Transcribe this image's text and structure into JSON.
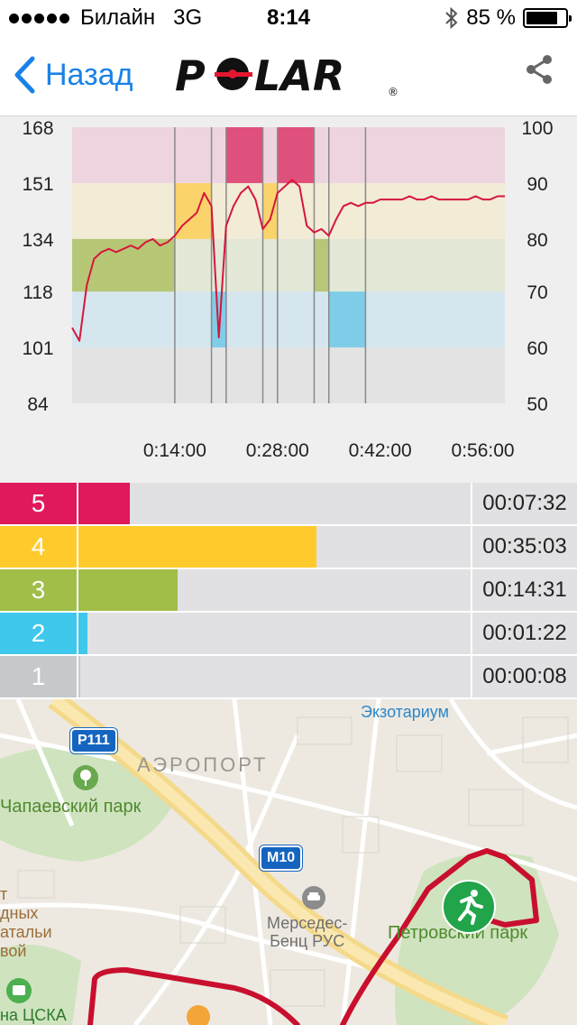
{
  "status_bar": {
    "carrier": "Билайн",
    "network": "3G",
    "time": "8:14",
    "battery_text": "85 %",
    "battery_level": 0.85
  },
  "nav": {
    "back_label": "Назад",
    "logo_text": "POLAR",
    "logo_mark": "®"
  },
  "chart_data": {
    "type": "line",
    "x": [
      0,
      1,
      2,
      3,
      4,
      5,
      6,
      7,
      8,
      9,
      10,
      11,
      12,
      13,
      14,
      15,
      16,
      17,
      18,
      19,
      20,
      21,
      22,
      23,
      24,
      25,
      26,
      27,
      28,
      29,
      30,
      31,
      32,
      33,
      34,
      35,
      36,
      37,
      38,
      39,
      40,
      41,
      42,
      43,
      44,
      45,
      46,
      47,
      48,
      49,
      50,
      51,
      52,
      53,
      54,
      55,
      56,
      57,
      58,
      59
    ],
    "y": [
      107,
      103,
      120,
      128,
      130,
      131,
      130,
      131,
      132,
      131,
      133,
      134,
      132,
      133,
      135,
      138,
      140,
      142,
      148,
      144,
      104,
      138,
      144,
      148,
      150,
      146,
      137,
      140,
      148,
      150,
      152,
      150,
      138,
      136,
      137,
      135,
      140,
      144,
      145,
      144,
      145,
      145,
      146,
      146,
      146,
      146,
      147,
      146,
      146,
      147,
      146,
      146,
      146,
      146,
      146,
      147,
      146,
      146,
      147,
      147
    ],
    "xlabel": "",
    "ylabel": "",
    "xlim": [
      0,
      59
    ],
    "ylim": [
      84,
      168
    ],
    "x_ticks": [
      "0:14:00",
      "0:28:00",
      "0:42:00",
      "0:56:00"
    ],
    "x_tick_values": [
      14,
      28,
      42,
      56
    ],
    "y_ticks_left": [
      "168",
      "151",
      "134",
      "118",
      "101",
      "84"
    ],
    "y_tick_values_left": [
      168,
      151,
      134,
      118,
      101,
      84
    ],
    "y_ticks_right": [
      "100",
      "90",
      "80",
      "70",
      "60",
      "50"
    ],
    "bands": [
      {
        "zone": 5,
        "from": 151,
        "to": 168,
        "color": "#eed4df",
        "active_color": "#e0507c"
      },
      {
        "zone": 4,
        "from": 134,
        "to": 151,
        "color": "#f2ebd6",
        "active_color": "#fbd36b"
      },
      {
        "zone": 3,
        "from": 118,
        "to": 134,
        "color": "#e4e8d6",
        "active_color": "#b6c775"
      },
      {
        "zone": 2,
        "from": 101,
        "to": 118,
        "color": "#d5e6ef",
        "active_color": "#7fcde8"
      },
      {
        "zone": 1,
        "from": 84,
        "to": 101,
        "color": "#e3e3e3",
        "active_color": "#cdcdcd"
      }
    ],
    "zone_segments": [
      {
        "from": 0,
        "to": 14,
        "zone": 3
      },
      {
        "from": 14,
        "to": 19,
        "zone": 4
      },
      {
        "from": 19,
        "to": 21,
        "zone": 2
      },
      {
        "from": 21,
        "to": 26,
        "zone": 5
      },
      {
        "from": 26,
        "to": 28,
        "zone": 4
      },
      {
        "from": 28,
        "to": 33,
        "zone": 5
      },
      {
        "from": 33,
        "to": 35,
        "zone": 3
      },
      {
        "from": 35,
        "to": 40,
        "zone": 2
      },
      {
        "from": 40,
        "to": 59,
        "zone": 0
      }
    ],
    "line_color": "#d6163c",
    "grid": false
  },
  "zones": [
    {
      "number": "5",
      "time": "00:07:32",
      "fraction": 0.131,
      "color": "#e0185c"
    },
    {
      "number": "4",
      "time": "00:35:03",
      "fraction": 0.607,
      "color": "#ffca2c"
    },
    {
      "number": "3",
      "time": "00:14:31",
      "fraction": 0.252,
      "color": "#a0be48"
    },
    {
      "number": "2",
      "time": "00:01:22",
      "fraction": 0.024,
      "color": "#3fc7ec"
    },
    {
      "number": "1",
      "time": "00:00:08",
      "fraction": 0.002,
      "color": "#c6c9ca"
    }
  ],
  "map": {
    "labels": {
      "ekzotarium": "Экзотариум",
      "airport": "АЭРОПОРТ",
      "chapaev_park": "Чапаевский парк",
      "mercedes": "Мерседес-\nБенц РУС",
      "petrovsky_park": "Петровский парк",
      "natalia_left1": "т",
      "natalia_left2": "дных",
      "natalia_left3": "атальи",
      "natalia_left4": "вой",
      "cska": "на ЦСКА"
    },
    "road_shields": {
      "r111": "Р111",
      "m10": "М10"
    },
    "route_color": "#c8102e"
  }
}
